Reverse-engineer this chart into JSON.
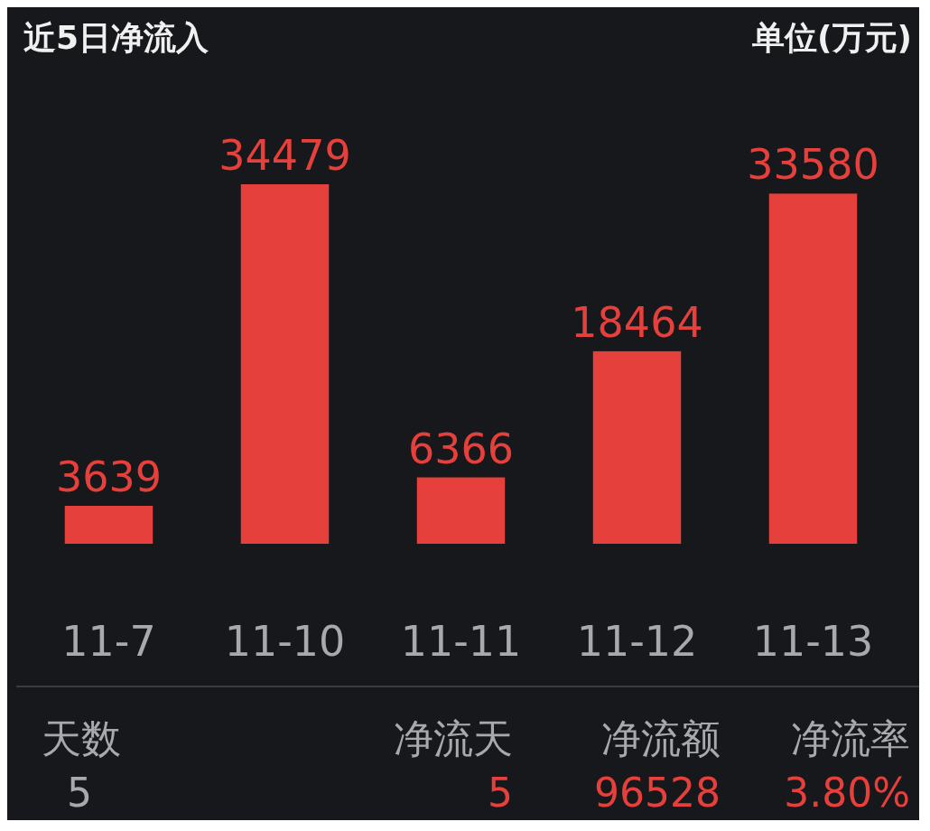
{
  "chart_data": {
    "type": "bar",
    "title": "近5日净流入",
    "subtitle": "单位(万元)",
    "categories": [
      "11-7",
      "11-10",
      "11-11",
      "11-12",
      "11-13"
    ],
    "values": [
      3639,
      34479,
      6366,
      18464,
      33580
    ],
    "color": "#e5403b",
    "data_labels": true,
    "annotations": [
      "天数",
      "5",
      "净流天",
      "5",
      "净流额",
      "96528",
      "净流率",
      "3.80%"
    ]
  }
}
